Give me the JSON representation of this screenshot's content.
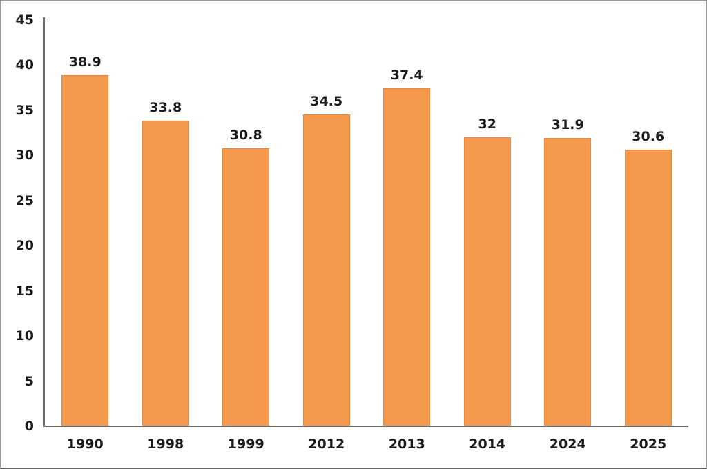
{
  "chart_data": {
    "type": "bar",
    "title": "",
    "xlabel": "",
    "ylabel": "",
    "categories": [
      "1990",
      "1998",
      "1999",
      "2012",
      "2013",
      "2014",
      "2024",
      "2025"
    ],
    "values": [
      38.9,
      33.8,
      30.8,
      34.5,
      37.4,
      32,
      31.9,
      30.6
    ],
    "value_labels": [
      "38.9",
      "33.8",
      "30.8",
      "34.5",
      "37.4",
      "32",
      "31.9",
      "30.6"
    ],
    "ylim": [
      0,
      45
    ],
    "yticks": [
      0,
      5,
      10,
      15,
      20,
      25,
      30,
      35,
      40,
      45
    ],
    "grid": false,
    "legend": null,
    "colors": {
      "bar_fill": "#F4984C",
      "bar_border": "#E8863C",
      "axis_line": "#6A6A6A",
      "text": "#1C1C1C",
      "background": "#FFFFFF",
      "frame_border": "#9A9A9A"
    }
  }
}
